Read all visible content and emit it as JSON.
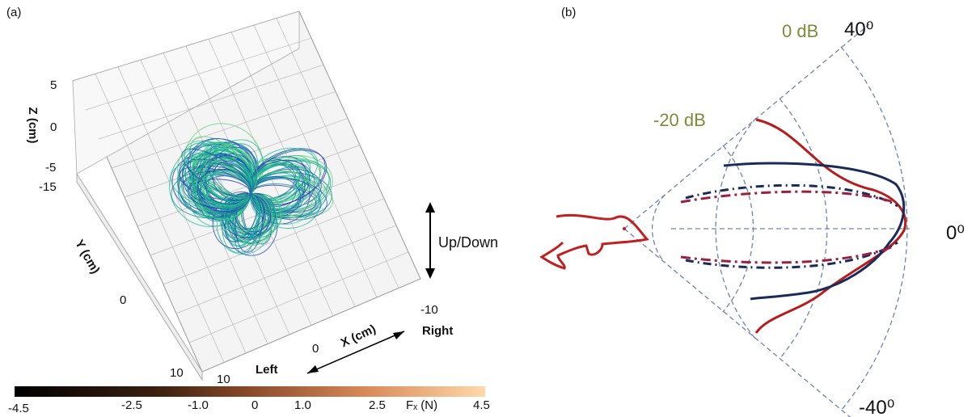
{
  "panels": [
    {
      "label": "(a)",
      "axes": {
        "z_title": "Z (cm)",
        "z_ticks": [
          "5",
          "0",
          "-5"
        ],
        "y_title": "Y (cm)",
        "y_ticks": [
          "-15",
          "0",
          "10"
        ],
        "x_title": "X (cm)",
        "x_ticks": [
          "10",
          "0",
          "-10"
        ]
      },
      "annotations": [
        "Up/Down",
        "Left",
        "Right"
      ],
      "colorbar": {
        "ticks": [
          "-4.5",
          "-2.5",
          "-1.0",
          "0",
          "1.0",
          "2.5",
          "4.5"
        ],
        "title": "Fₓ (N)"
      }
    },
    {
      "label": "(b)",
      "ring_labels": [
        "0 dB",
        "-20 dB"
      ],
      "angle_labels": [
        "40⁰",
        "0⁰",
        "-40⁰"
      ]
    }
  ]
}
